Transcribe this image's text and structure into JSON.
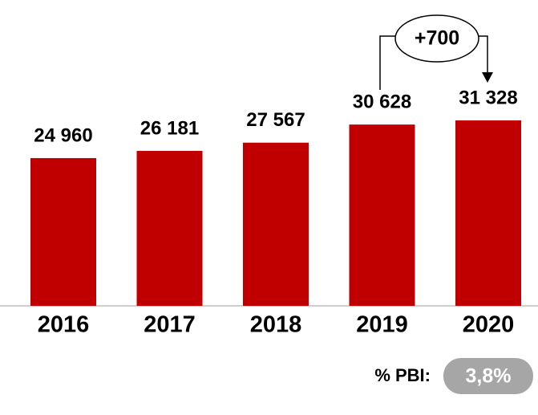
{
  "chart_data": {
    "type": "bar",
    "categories": [
      "2016",
      "2017",
      "2018",
      "2019",
      "2020"
    ],
    "values": [
      24960,
      26181,
      27567,
      30628,
      31328
    ],
    "value_labels": [
      "24 960",
      "26 181",
      "27 567",
      "30 628",
      "31 328"
    ],
    "color": "#c00000",
    "annotation": "+700",
    "pbi_label": "% PBI:",
    "pbi_value": "3,8%"
  }
}
